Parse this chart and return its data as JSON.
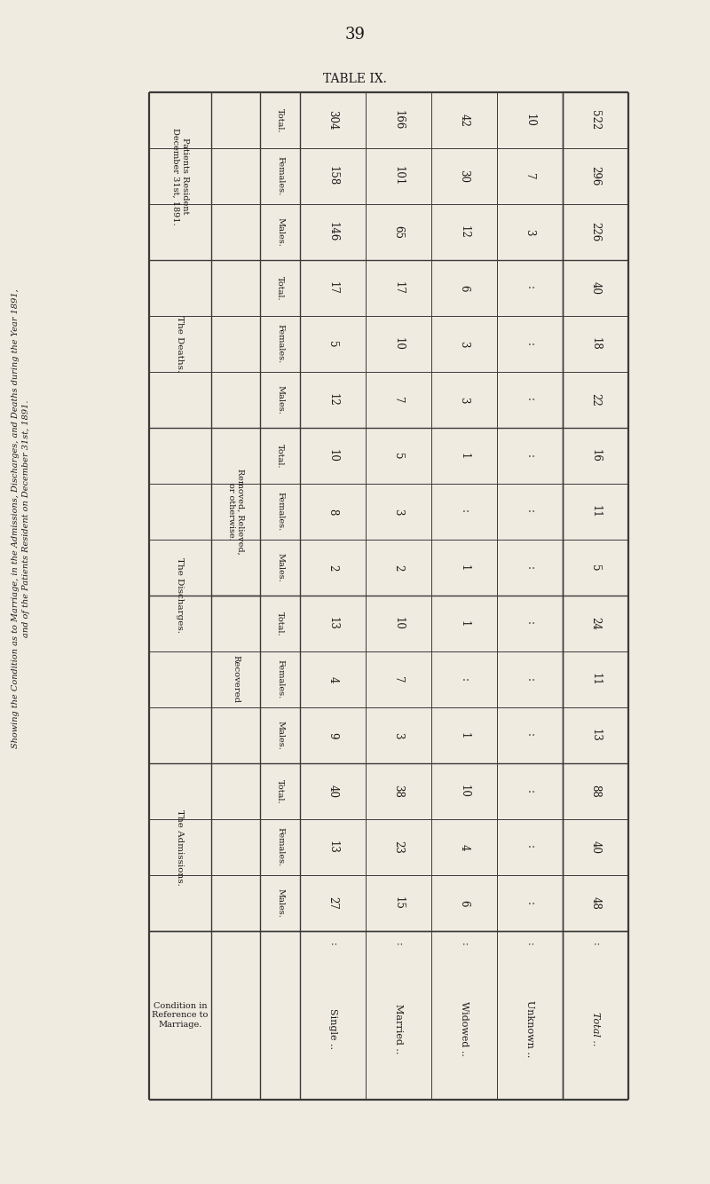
{
  "page_number": "39",
  "title_left1": "Showing the Condition as to Marriage, in the Admissions, Discharges, and Deaths during the Year 1891,",
  "title_left2": "and of the Patients Resident on December 31st, 1891.",
  "bg_color": "#f0ebe0",
  "table_title": "TABLE IX.",
  "row_labels_rotated": [
    "Single ..",
    "Married ..",
    "Widowed ..",
    "Unknown ..",
    "Total .."
  ],
  "col_structure": [
    {
      "group": "Condition in\nReference to\nMarriage.",
      "span": 1,
      "sub": null
    },
    {
      "group": "The Admissions.",
      "span": 3,
      "sub": [
        {
          "name": "Males.",
          "values": [
            "27",
            "15",
            "6",
            ":",
            "48"
          ]
        },
        {
          "name": "Females.",
          "values": [
            "13",
            "23",
            "4",
            ":",
            "40"
          ]
        },
        {
          "name": "Total.",
          "values": [
            "40",
            "38",
            "10",
            ":",
            "88"
          ]
        }
      ]
    },
    {
      "group": "The Discharges.",
      "span": 6,
      "sub2": [
        {
          "name": "Recovered",
          "sub": [
            {
              "name": "Males.",
              "values": [
                "9",
                "3",
                "1",
                ":",
                "13"
              ]
            },
            {
              "name": "Females.",
              "values": [
                "4",
                "7",
                ":",
                ":",
                "11"
              ]
            },
            {
              "name": "Total.",
              "values": [
                "13",
                "10",
                "1",
                ":",
                "24"
              ]
            }
          ]
        },
        {
          "name": "Removed, Relieved,\nor otherwise.",
          "sub": [
            {
              "name": "Males.",
              "values": [
                "2",
                "2",
                "1",
                ":",
                "5"
              ]
            },
            {
              "name": "Females.",
              "values": [
                "8",
                "3",
                ":",
                ":",
                "11"
              ]
            },
            {
              "name": "Total.",
              "values": [
                "10",
                "5",
                "1",
                ":",
                "16"
              ]
            }
          ]
        }
      ]
    },
    {
      "group": "The Deaths.",
      "span": 3,
      "sub": [
        {
          "name": "Males.",
          "values": [
            "12",
            "7",
            "3",
            ":",
            "22"
          ]
        },
        {
          "name": "Females.",
          "values": [
            "5",
            "10",
            "3",
            ":",
            "18"
          ]
        },
        {
          "name": "Total.",
          "values": [
            "17",
            "17",
            "6",
            ":",
            "40"
          ]
        }
      ]
    },
    {
      "group": "Patients Resident\nDecember 31st, 1891.",
      "span": 3,
      "sub": [
        {
          "name": "Males.",
          "values": [
            "146",
            "65",
            "12",
            "3",
            "226"
          ]
        },
        {
          "name": "Females.",
          "values": [
            "158",
            "101",
            "30",
            "7",
            "296"
          ]
        },
        {
          "name": "Total.",
          "values": [
            "304",
            "166",
            "42",
            "10",
            "522"
          ]
        }
      ]
    }
  ],
  "row_dots": [
    ":",
    ":",
    ":",
    ":",
    ":"
  ],
  "admissions": {
    "males": [
      "27",
      "15",
      "6",
      ":",
      "48"
    ],
    "females": [
      "13",
      "23",
      "4",
      ":",
      "40"
    ],
    "total": [
      "40",
      "38",
      "10",
      ":",
      "88"
    ]
  },
  "recovered": {
    "males": [
      "9",
      "3",
      "1",
      ":",
      "13"
    ],
    "females": [
      "4",
      "7",
      ":",
      ":",
      "11"
    ],
    "total": [
      "13",
      "10",
      "1",
      ":",
      "24"
    ]
  },
  "removed": {
    "males": [
      "2",
      "2",
      "1",
      ":",
      "5"
    ],
    "females": [
      "8",
      "3",
      ":",
      ":",
      "11"
    ],
    "total": [
      "10",
      "5",
      "1",
      ":",
      "16"
    ]
  },
  "deaths": {
    "males": [
      "12",
      "7",
      "3",
      ":",
      "22"
    ],
    "females": [
      "5",
      "10",
      "3",
      ":",
      "18"
    ],
    "total": [
      "17",
      "17",
      "6",
      ":",
      "40"
    ]
  },
  "patients": {
    "males": [
      "146",
      "65",
      "12",
      "3",
      "226"
    ],
    "females": [
      "158",
      "101",
      "30",
      "7",
      "296"
    ],
    "total": [
      "304",
      "166",
      "42",
      "10",
      "522"
    ]
  }
}
